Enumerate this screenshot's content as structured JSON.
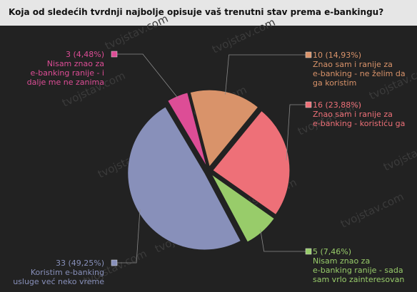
{
  "chart_data": {
    "type": "pie",
    "title": "Koja od sledećih tvrdnji najbolje opisuje vaš trenutni stav prema e-bankingu?",
    "slices": [
      {
        "count": 10,
        "pct_label": "10 (14,93%)",
        "text_lines": [
          "Znao sam i ranije za",
          "e-banking - ne želim da",
          "ga koristim"
        ],
        "color": "#d9936a"
      },
      {
        "count": 16,
        "pct_label": "16 (23,88%)",
        "text_lines": [
          "Znao sam i ranije za",
          "e-banking - koristiću ga"
        ],
        "color": "#ee7078"
      },
      {
        "count": 5,
        "pct_label": "5 (7,46%)",
        "text_lines": [
          "Nisam znao za",
          "e-banking ranije - sada",
          "sam vrlo zainteresovan"
        ],
        "color": "#98cc6a"
      },
      {
        "count": 33,
        "pct_label": "33 (49,25%)",
        "text_lines": [
          "Koristim e-banking",
          "usluge već neko vreme"
        ],
        "color": "#8890ba"
      },
      {
        "count": 3,
        "pct_label": "3 (4,48%)",
        "text_lines": [
          "Nisam znao za",
          "e-banking ranije - i",
          "dalje me ne zanima"
        ],
        "color": "#dd4d96"
      }
    ]
  },
  "watermark": "tvojstav.com"
}
